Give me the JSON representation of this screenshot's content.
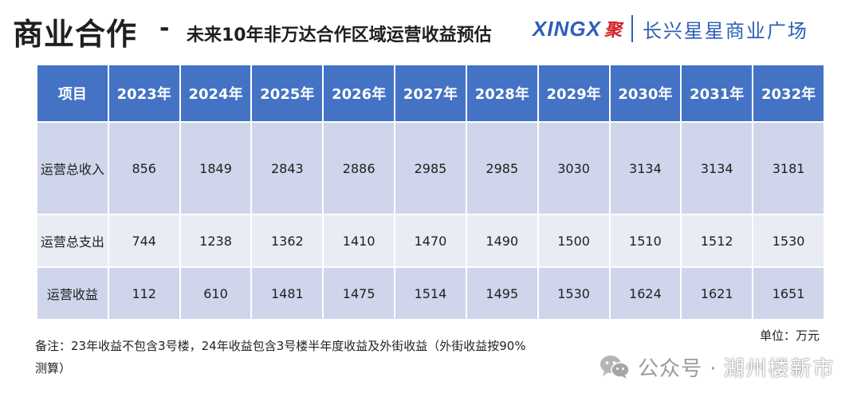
{
  "header": {
    "title": "商业合作",
    "dash": "-",
    "subtitle": "未来10年非万达合作区域运营收益预估",
    "logo_en": "XINGX",
    "logo_mark": "聚",
    "logo_cn": "长兴星星商业广场"
  },
  "table": {
    "columns": [
      "项目",
      "2023年",
      "2024年",
      "2025年",
      "2026年",
      "2027年",
      "2028年",
      "2029年",
      "2030年",
      "2031年",
      "2032年"
    ],
    "rows": [
      {
        "label": "运营总收入",
        "values": [
          "856",
          "1849",
          "2843",
          "2886",
          "2985",
          "2985",
          "3030",
          "3134",
          "3134",
          "3181"
        ]
      },
      {
        "label": "运营总支出",
        "values": [
          "744",
          "1238",
          "1362",
          "1410",
          "1470",
          "1490",
          "1500",
          "1510",
          "1512",
          "1530"
        ]
      },
      {
        "label": "运营收益",
        "values": [
          "112",
          "610",
          "1481",
          "1475",
          "1514",
          "1495",
          "1530",
          "1624",
          "1621",
          "1651"
        ]
      }
    ]
  },
  "unit": "单位：万元",
  "note": "备注：23年收益不包含3号楼，24年收益包含3号楼半年度收益及外街收益（外街收益按90%测算）",
  "watermark": {
    "icon": "wechat-icon",
    "text": "公众号 ·",
    "name": "湖州楼新市"
  },
  "colors": {
    "header_bg": "#4472c4",
    "row_dark": "#cfd5ea",
    "row_light": "#e9ebf5",
    "logo_blue": "#2d5fb5",
    "logo_red": "#d0262c"
  }
}
